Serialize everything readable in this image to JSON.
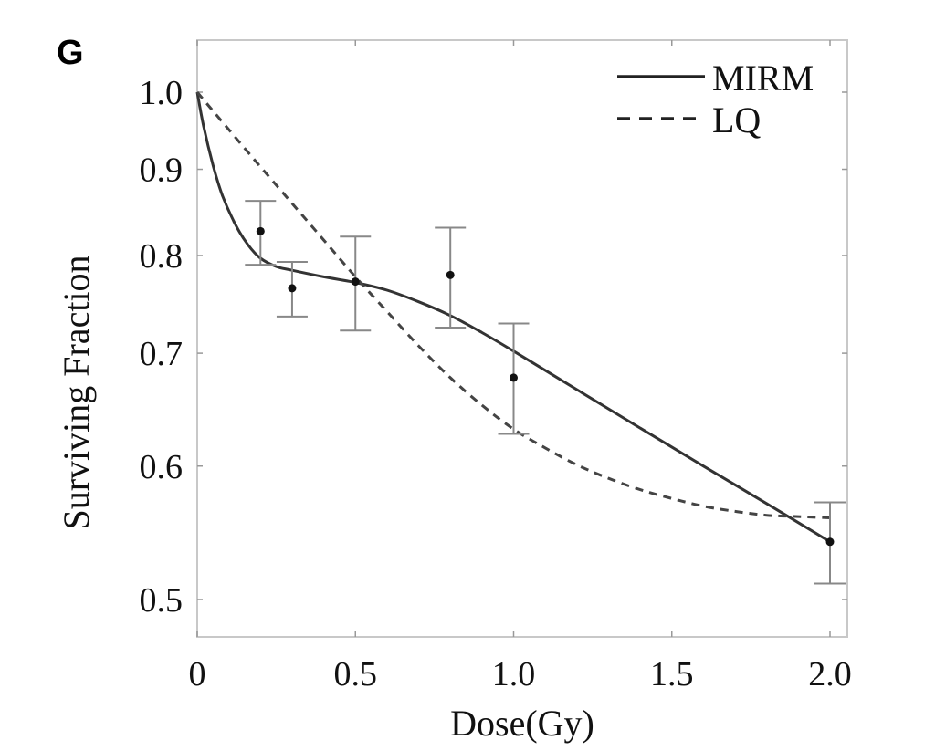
{
  "panel_label": "G",
  "chart_data": {
    "type": "line",
    "xlabel": "Dose(Gy)",
    "ylabel": "Surviving Fraction",
    "y_scale": "log",
    "xlim": [
      0,
      2.05
    ],
    "ylim": [
      0.48,
      1.05
    ],
    "x_ticks": [
      {
        "value": 0,
        "label": "0"
      },
      {
        "value": 0.5,
        "label": "0.5"
      },
      {
        "value": 1.0,
        "label": "1.0"
      },
      {
        "value": 1.5,
        "label": "1.5"
      },
      {
        "value": 2.0,
        "label": "2.0"
      }
    ],
    "y_ticks": [
      {
        "value": 0.5,
        "label": "0.5"
      },
      {
        "value": 0.6,
        "label": "0.6"
      },
      {
        "value": 0.7,
        "label": "0.7"
      },
      {
        "value": 0.8,
        "label": "0.8"
      },
      {
        "value": 0.9,
        "label": "0.9"
      },
      {
        "value": 1.0,
        "label": "1.0"
      }
    ],
    "legend": {
      "placement": "top-right"
    },
    "series": [
      {
        "name": "MIRM",
        "style": "solid",
        "color": "#333333",
        "points": [
          [
            0,
            1.0
          ],
          [
            0.02,
            0.955
          ],
          [
            0.05,
            0.905
          ],
          [
            0.08,
            0.868
          ],
          [
            0.12,
            0.835
          ],
          [
            0.16,
            0.812
          ],
          [
            0.2,
            0.797
          ],
          [
            0.25,
            0.788
          ],
          [
            0.3,
            0.784
          ],
          [
            0.4,
            0.777
          ],
          [
            0.5,
            0.771
          ],
          [
            0.6,
            0.763
          ],
          [
            0.7,
            0.751
          ],
          [
            0.8,
            0.737
          ],
          [
            0.9,
            0.72
          ],
          [
            1.0,
            0.702
          ],
          [
            1.2,
            0.666
          ],
          [
            1.4,
            0.632
          ],
          [
            1.6,
            0.6
          ],
          [
            1.8,
            0.57
          ],
          [
            2.0,
            0.541
          ]
        ]
      },
      {
        "name": "LQ",
        "style": "dashed",
        "color": "#444444",
        "points": [
          [
            0,
            1.0
          ],
          [
            0.1,
            0.95
          ],
          [
            0.2,
            0.903
          ],
          [
            0.3,
            0.859
          ],
          [
            0.4,
            0.817
          ],
          [
            0.5,
            0.777
          ],
          [
            0.6,
            0.741
          ],
          [
            0.7,
            0.707
          ],
          [
            0.8,
            0.677
          ],
          [
            0.9,
            0.652
          ],
          [
            1.0,
            0.631
          ],
          [
            1.1,
            0.615
          ],
          [
            1.2,
            0.601
          ],
          [
            1.3,
            0.59
          ],
          [
            1.4,
            0.581
          ],
          [
            1.5,
            0.574
          ],
          [
            1.6,
            0.568
          ],
          [
            1.7,
            0.564
          ],
          [
            1.8,
            0.561
          ],
          [
            1.9,
            0.56
          ],
          [
            2.0,
            0.559
          ]
        ]
      },
      {
        "name": "data",
        "style": "points-with-error-bars",
        "color": "#111111",
        "points": [
          {
            "x": 0.2,
            "y": 0.827,
            "low": 0.79,
            "high": 0.862
          },
          {
            "x": 0.3,
            "y": 0.765,
            "low": 0.736,
            "high": 0.793
          },
          {
            "x": 0.5,
            "y": 0.772,
            "low": 0.722,
            "high": 0.821
          },
          {
            "x": 0.8,
            "y": 0.779,
            "low": 0.725,
            "high": 0.831
          },
          {
            "x": 1.0,
            "y": 0.677,
            "low": 0.627,
            "high": 0.729
          },
          {
            "x": 2.0,
            "y": 0.541,
            "low": 0.511,
            "high": 0.571
          }
        ]
      }
    ]
  }
}
